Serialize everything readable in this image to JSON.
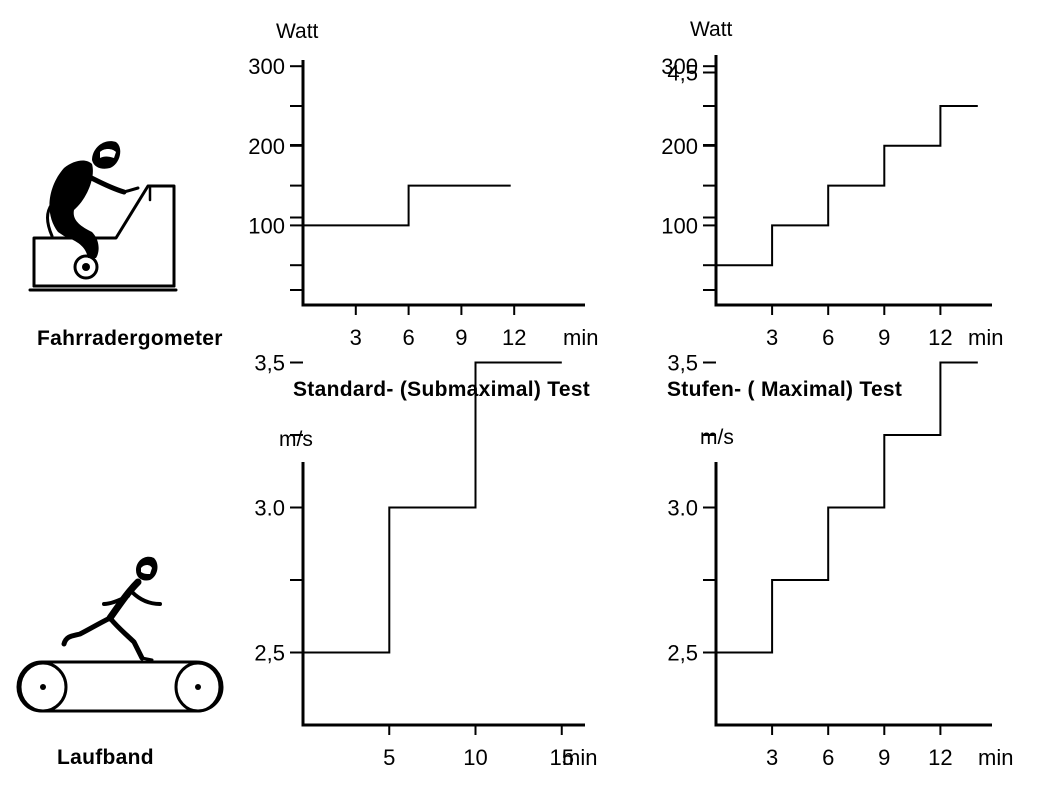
{
  "labels": {
    "bike": "Fahrradergometer",
    "treadmill": "Laufband",
    "standard": "Standard- (Submaximal) Test",
    "stufen": "Stufen- ( Maximal) Test"
  },
  "chart_data": [
    {
      "type": "line",
      "step": true,
      "ylabel": "Watt",
      "xlabel": "min",
      "xlim": [
        0,
        14
      ],
      "ylim": [
        0,
        300
      ],
      "xticks": [
        3,
        6,
        9,
        12
      ],
      "yticks": [
        50,
        100,
        150,
        200,
        250,
        300
      ],
      "ytick_labels": [
        "",
        "100",
        "",
        "200",
        "",
        "300"
      ],
      "series": [
        {
          "x": [
            0,
            6,
            6,
            11.8
          ],
          "y": [
            100,
            100,
            150,
            150
          ]
        }
      ]
    },
    {
      "type": "line",
      "step": true,
      "ylabel": "Watt",
      "xlabel": "min",
      "xlim": [
        0,
        14
      ],
      "ylim": [
        0,
        300
      ],
      "xticks": [
        3,
        6,
        9,
        12
      ],
      "yticks": [
        50,
        100,
        150,
        200,
        250,
        300
      ],
      "ytick_labels": [
        "",
        "100",
        "",
        "200",
        "",
        "300"
      ],
      "series": [
        {
          "x": [
            0,
            3,
            3,
            6,
            6,
            9,
            9,
            12,
            12,
            14
          ],
          "y": [
            50,
            50,
            100,
            100,
            150,
            150,
            200,
            200,
            250,
            250
          ]
        }
      ]
    },
    {
      "type": "line",
      "step": true,
      "ylabel": "m/s",
      "xlabel": "min",
      "xlim": [
        0,
        17
      ],
      "ylim": [
        2.25,
        4.75
      ],
      "xticks": [
        5,
        10,
        15
      ],
      "yticks": [
        2.5,
        2.75,
        3.0,
        3.25,
        3.5,
        3.75,
        4.0,
        4.25
      ],
      "ytick_labels": [
        "2,5",
        "",
        "3.0",
        "",
        "3,5",
        "",
        "",
        ""
      ],
      "series": [
        {
          "x": [
            0,
            5,
            5,
            10,
            10,
            15
          ],
          "y": [
            2.5,
            2.5,
            3.0,
            3.0,
            3.5,
            3.5
          ]
        }
      ]
    },
    {
      "type": "line",
      "step": true,
      "ylabel": "m/s",
      "xlabel": "min",
      "xlim": [
        0,
        14
      ],
      "ylim": [
        2.25,
        4.75
      ],
      "xticks": [
        3,
        6,
        9,
        12
      ],
      "yticks": [
        2.5,
        2.75,
        3.0,
        3.25,
        3.5,
        3.75,
        4.0,
        4.25,
        4.5
      ],
      "ytick_labels": [
        "2,5",
        "",
        "3.0",
        "",
        "3,5",
        "",
        "",
        "",
        "4,5"
      ],
      "series": [
        {
          "x": [
            0,
            3,
            3,
            6,
            6,
            9,
            9,
            12,
            12,
            14
          ],
          "y": [
            2.5,
            2.5,
            2.75,
            2.75,
            3.0,
            3.0,
            3.25,
            3.25,
            3.5,
            3.5
          ]
        }
      ]
    }
  ]
}
